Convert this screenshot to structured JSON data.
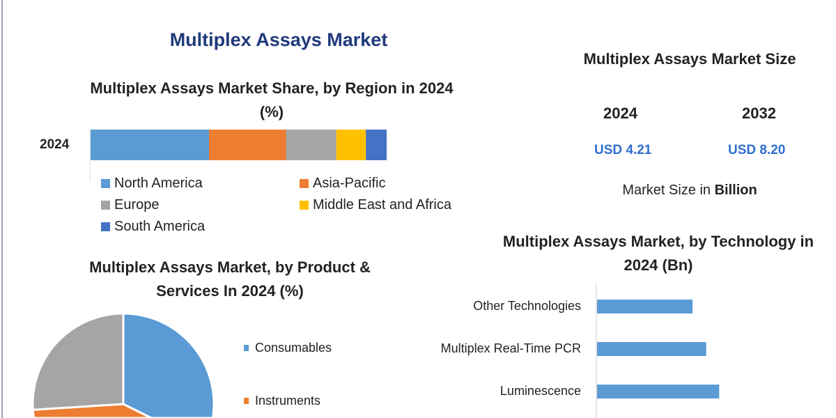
{
  "main_title": "Multiplex Assays Market",
  "size_panel": {
    "title": "Multiplex Assays Market Size",
    "years": [
      "2024",
      "2032"
    ],
    "values": [
      "USD 4.21",
      "USD 8.20"
    ],
    "unit_prefix": "Market Size in ",
    "unit_bold": "Billion"
  },
  "chart_data": [
    {
      "type": "bar",
      "orientation": "horizontal-stacked",
      "title": "Multiplex Assays Market Share, by Region in 2024 (%)",
      "categories": [
        "2024"
      ],
      "series": [
        {
          "name": "North America",
          "values": [
            40
          ],
          "color": "#5b9bd5"
        },
        {
          "name": "Asia-Pacific",
          "values": [
            26
          ],
          "color": "#ed7d31"
        },
        {
          "name": "Europe",
          "values": [
            17
          ],
          "color": "#a5a5a5"
        },
        {
          "name": "Middle East and Africa",
          "values": [
            10
          ],
          "color": "#ffc000"
        },
        {
          "name": "South America",
          "values": [
            7
          ],
          "color": "#4472c4"
        }
      ],
      "legend": "bottom",
      "xlim": [
        0,
        100
      ]
    },
    {
      "type": "pie",
      "title": "Multiplex Assays Market, by Product & Services In 2024 (%)",
      "slices": [
        {
          "name": "Consumables",
          "value": 45,
          "color": "#5b9bd5"
        },
        {
          "name": "Instruments",
          "value": 29,
          "color": "#ed7d31"
        },
        {
          "value": 26,
          "color": "#a5a5a5"
        }
      ],
      "legend": "right"
    },
    {
      "type": "bar",
      "orientation": "horizontal",
      "title": "Multiplex Assays Market, by Technology in 2024 (Bn)",
      "categories": [
        "Other Technologies",
        "Multiplex Real-Time PCR",
        "Luminescence"
      ],
      "values": [
        1.4,
        1.6,
        1.79
      ],
      "color": "#5b9bd5",
      "xlim": [
        0,
        3.4
      ]
    }
  ]
}
